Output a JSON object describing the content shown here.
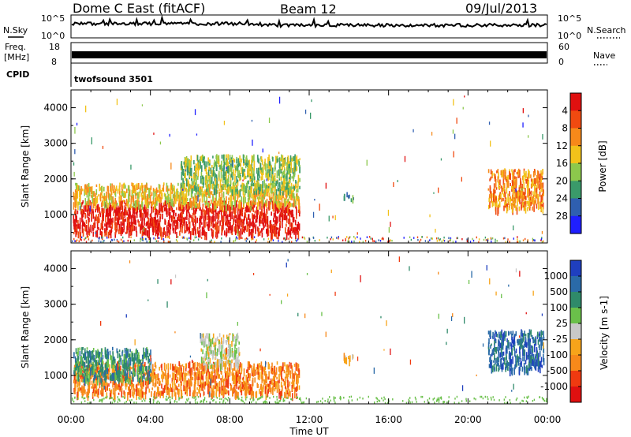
{
  "header": {
    "station": "Dome C East (fitACF)",
    "beam": "Beam 12",
    "date": "09/Jul/2013"
  },
  "noise_panel": {
    "left_label": "N.Sky",
    "right_label": "N.Search",
    "left_ticks": [
      "10^5",
      "10^0"
    ],
    "right_ticks": [
      "10^5",
      "10^0"
    ]
  },
  "freq_panel": {
    "left_label_line1": "Freq.",
    "left_label_line2": "[MHz]",
    "right_label": "Nave",
    "left_ticks": [
      "18",
      "8"
    ],
    "right_ticks": [
      "60",
      "0"
    ]
  },
  "cpid_panel": {
    "label": "CPID",
    "value": "twofsound 3501"
  },
  "x_axis": {
    "label": "Time UT",
    "ticks": [
      "00:00",
      "04:00",
      "08:00",
      "12:00",
      "16:00",
      "20:00",
      "00:00"
    ]
  },
  "chart_data": [
    {
      "type": "heatmap",
      "name": "power",
      "ylabel": "Slant Range [km]",
      "y_ticks": [
        "1000",
        "2000",
        "3000",
        "4000"
      ],
      "ylim": [
        200,
        4500
      ],
      "xlim_hours": [
        0,
        24
      ],
      "colorbar": {
        "label": "Power [dB]",
        "ticks": [
          "4",
          "8",
          "12",
          "16",
          "20",
          "24",
          "28"
        ],
        "colors": [
          "#1f1fff",
          "#2f5fb0",
          "#3a9a6a",
          "#8cc84c",
          "#f2c21a",
          "#f7891a",
          "#f04a10",
          "#e01010"
        ]
      },
      "regions": [
        {
          "t": [
            0.1,
            11.5
          ],
          "r": [
            500,
            1400
          ],
          "level": 7
        },
        {
          "t": [
            0.1,
            11.5
          ],
          "r": [
            1300,
            1900
          ],
          "level": 4
        },
        {
          "t": [
            5.5,
            11.5
          ],
          "r": [
            1700,
            2700
          ],
          "level": 3
        },
        {
          "t": [
            13.7,
            14.2
          ],
          "r": [
            1450,
            1650
          ],
          "level": 2
        },
        {
          "t": [
            21.0,
            23.8
          ],
          "r": [
            1200,
            2300
          ],
          "level": 5
        }
      ]
    },
    {
      "type": "heatmap",
      "name": "velocity",
      "ylabel": "Slant Range [km]",
      "y_ticks": [
        "1000",
        "2000",
        "3000",
        "4000"
      ],
      "ylim": [
        200,
        4500
      ],
      "xlim_hours": [
        0,
        24
      ],
      "colorbar": {
        "label": "Velocity [m s-1]",
        "ticks": [
          "1000",
          "500",
          "100",
          "25",
          "-25",
          "-100",
          "-500",
          "-1000"
        ],
        "colors": [
          "#1f3fbf",
          "#2a6aa8",
          "#2f8a6a",
          "#6ac04a",
          "#c8c8c8",
          "#f7a41a",
          "#f7891a",
          "#f03a10",
          "#e01010"
        ]
      },
      "regions": [
        {
          "t": [
            0.1,
            11.5
          ],
          "r": [
            500,
            1400
          ],
          "level": 6
        },
        {
          "t": [
            0.1,
            4.0
          ],
          "r": [
            900,
            1800
          ],
          "level": 2
        },
        {
          "t": [
            6.5,
            8.5
          ],
          "r": [
            1300,
            2200
          ],
          "level": 4
        },
        {
          "t": [
            13.7,
            14.2
          ],
          "r": [
            1450,
            1650
          ],
          "level": 5
        },
        {
          "t": [
            21.0,
            23.8
          ],
          "r": [
            1200,
            2300
          ],
          "level": 1
        }
      ]
    }
  ]
}
